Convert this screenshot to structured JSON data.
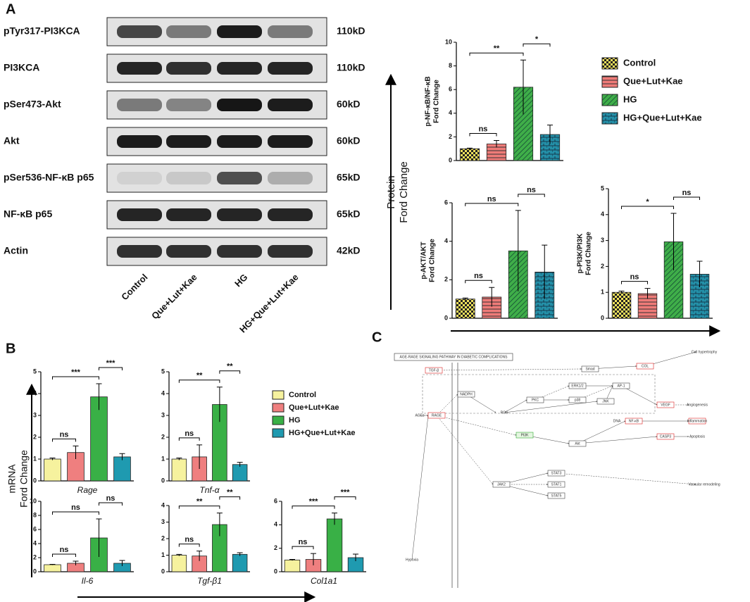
{
  "panels": [
    "A",
    "B",
    "C"
  ],
  "blots": [
    {
      "label": "pTyr317-PI3KCA",
      "size": "110kD"
    },
    {
      "label": "PI3KCA",
      "size": "110kD"
    },
    {
      "label": "pSer473-Akt",
      "size": "60kD"
    },
    {
      "label": "Akt",
      "size": "60kD"
    },
    {
      "label": "pSer536-NF-κB p65",
      "size": "65kD"
    },
    {
      "label": "NF-κB p65",
      "size": "65kD"
    },
    {
      "label": "Actin",
      "size": "42kD"
    }
  ],
  "lanes": [
    "Control",
    "Que+Lut+Kae",
    "HG",
    "HG+Que+Lut+Kae"
  ],
  "protein_axis_label": [
    "Protein",
    "Ford Change"
  ],
  "mrna_axis_label": [
    "mRNA",
    "Ford Change"
  ],
  "legend_a": [
    {
      "name": "Control",
      "color": "#f2e35c",
      "pattern": "checker"
    },
    {
      "name": "Que+Lut+Kae",
      "color": "#ef7b78",
      "pattern": "hstripe"
    },
    {
      "name": "HG",
      "color": "#3fae49",
      "pattern": "diag"
    },
    {
      "name": "HG+Que+Lut+Kae",
      "color": "#2490a8",
      "pattern": "brick"
    }
  ],
  "legend_b": [
    {
      "name": "Control",
      "color": "#f6f29e"
    },
    {
      "name": "Que+Lut+Kae",
      "color": "#ef7f7f"
    },
    {
      "name": "HG",
      "color": "#39b046"
    },
    {
      "name": "HG+Que+Lut+Kae",
      "color": "#1f9ab0"
    }
  ],
  "chart_data": [
    {
      "type": "bar",
      "ylabel": [
        "p-NF-κB/NF-κB",
        "Ford Change"
      ],
      "values": [
        1.0,
        1.4,
        6.2,
        2.2
      ],
      "errors": [
        0.05,
        0.3,
        2.3,
        0.8
      ],
      "colors": [
        "#f2e35c",
        "#ef7b78",
        "#3fae49",
        "#2490a8"
      ],
      "patterns": [
        "checker",
        "hstripe",
        "diag",
        "brick"
      ],
      "ylim": [
        0,
        10
      ],
      "yticks": [
        0,
        2,
        4,
        6,
        8,
        10
      ],
      "comparisons": [
        {
          "from": 0,
          "to": 1,
          "label": "ns"
        },
        {
          "from": 0,
          "to": 2,
          "label": "**"
        },
        {
          "from": 2,
          "to": 3,
          "label": "*"
        }
      ]
    },
    {
      "type": "bar",
      "ylabel": [
        "p-AKT/AKT",
        "Ford Change"
      ],
      "values": [
        1.0,
        1.1,
        3.5,
        2.4
      ],
      "errors": [
        0.05,
        0.5,
        2.1,
        1.4
      ],
      "colors": [
        "#f2e35c",
        "#ef7b78",
        "#3fae49",
        "#2490a8"
      ],
      "patterns": [
        "checker",
        "hstripe",
        "diag",
        "brick"
      ],
      "ylim": [
        0,
        6
      ],
      "yticks": [
        0,
        2,
        4,
        6
      ],
      "comparisons": [
        {
          "from": 0,
          "to": 1,
          "label": "ns"
        },
        {
          "from": 0,
          "to": 2,
          "label": "ns"
        },
        {
          "from": 2,
          "to": 3,
          "label": "ns"
        }
      ]
    },
    {
      "type": "bar",
      "ylabel": [
        "p-PI3K/PI3K",
        "Ford Change"
      ],
      "values": [
        1.0,
        0.95,
        2.95,
        1.7
      ],
      "errors": [
        0.05,
        0.2,
        1.1,
        0.5
      ],
      "colors": [
        "#f2e35c",
        "#ef7b78",
        "#3fae49",
        "#2490a8"
      ],
      "patterns": [
        "checker",
        "hstripe",
        "diag",
        "brick"
      ],
      "ylim": [
        0,
        5
      ],
      "yticks": [
        0,
        1,
        2,
        3,
        4,
        5
      ],
      "comparisons": [
        {
          "from": 0,
          "to": 1,
          "label": "ns"
        },
        {
          "from": 0,
          "to": 2,
          "label": "*"
        },
        {
          "from": 2,
          "to": 3,
          "label": "ns"
        }
      ]
    },
    {
      "type": "bar",
      "xlabel": "Rage",
      "values": [
        1.0,
        1.3,
        3.85,
        1.1
      ],
      "errors": [
        0.05,
        0.3,
        0.6,
        0.15
      ],
      "colors": [
        "#f6f29e",
        "#ef7f7f",
        "#39b046",
        "#1f9ab0"
      ],
      "ylim": [
        0,
        5
      ],
      "yticks": [
        0,
        1,
        2,
        3,
        4,
        5
      ],
      "comparisons": [
        {
          "from": 0,
          "to": 1,
          "label": "ns"
        },
        {
          "from": 0,
          "to": 2,
          "label": "***"
        },
        {
          "from": 2,
          "to": 3,
          "label": "***"
        }
      ]
    },
    {
      "type": "bar",
      "xlabel": "Tnf-α",
      "values": [
        1.0,
        1.1,
        3.5,
        0.75
      ],
      "errors": [
        0.05,
        0.55,
        0.8,
        0.1
      ],
      "colors": [
        "#f6f29e",
        "#ef7f7f",
        "#39b046",
        "#1f9ab0"
      ],
      "ylim": [
        0,
        5
      ],
      "yticks": [
        0,
        1,
        2,
        3,
        4,
        5
      ],
      "comparisons": [
        {
          "from": 0,
          "to": 1,
          "label": "ns"
        },
        {
          "from": 0,
          "to": 2,
          "label": "**"
        },
        {
          "from": 2,
          "to": 3,
          "label": "**"
        }
      ]
    },
    {
      "type": "bar",
      "xlabel": "Il-6",
      "values": [
        1.0,
        1.2,
        4.8,
        1.2
      ],
      "errors": [
        0.05,
        0.3,
        2.7,
        0.4
      ],
      "colors": [
        "#f6f29e",
        "#ef7f7f",
        "#39b046",
        "#1f9ab0"
      ],
      "ylim": [
        0,
        10
      ],
      "yticks": [
        0,
        2,
        4,
        6,
        8,
        10
      ],
      "comparisons": [
        {
          "from": 0,
          "to": 1,
          "label": "ns"
        },
        {
          "from": 0,
          "to": 2,
          "label": "ns"
        },
        {
          "from": 2,
          "to": 3,
          "label": "ns"
        }
      ]
    },
    {
      "type": "bar",
      "xlabel": "Tgf-β1",
      "values": [
        1.0,
        0.95,
        2.85,
        1.05
      ],
      "errors": [
        0.05,
        0.3,
        0.7,
        0.1
      ],
      "colors": [
        "#f6f29e",
        "#ef7f7f",
        "#39b046",
        "#1f9ab0"
      ],
      "ylim": [
        0,
        4
      ],
      "yticks": [
        0,
        1,
        2,
        3,
        4
      ],
      "comparisons": [
        {
          "from": 0,
          "to": 1,
          "label": "ns"
        },
        {
          "from": 0,
          "to": 2,
          "label": "**"
        },
        {
          "from": 2,
          "to": 3,
          "label": "**"
        }
      ]
    },
    {
      "type": "bar",
      "xlabel": "Col1a1",
      "values": [
        1.0,
        1.05,
        4.5,
        1.2
      ],
      "errors": [
        0.05,
        0.5,
        0.5,
        0.3
      ],
      "colors": [
        "#f6f29e",
        "#ef7f7f",
        "#39b046",
        "#1f9ab0"
      ],
      "ylim": [
        0,
        6
      ],
      "yticks": [
        0,
        2,
        4,
        6
      ],
      "comparisons": [
        {
          "from": 0,
          "to": 1,
          "label": "ns"
        },
        {
          "from": 0,
          "to": 2,
          "label": "***"
        },
        {
          "from": 2,
          "to": 3,
          "label": "***"
        }
      ]
    }
  ],
  "diagram": {
    "title": "AGE-RAGE SIGNALING PATHWAY IN DIABETIC COMPLICATIONS",
    "nodes": [
      {
        "label": "AGEs"
      },
      {
        "label": "RAGE"
      },
      {
        "label": "NADPH"
      },
      {
        "label": "ROS"
      },
      {
        "label": "PKC"
      },
      {
        "label": "PI3K"
      },
      {
        "label": "Akt"
      },
      {
        "label": "NF-κB"
      },
      {
        "label": "JAK2"
      },
      {
        "label": "STAT3"
      },
      {
        "label": "STAT1"
      },
      {
        "label": "STAT5"
      },
      {
        "label": "p38"
      },
      {
        "label": "JNK"
      },
      {
        "label": "ERK1/2"
      },
      {
        "label": "AP-1"
      },
      {
        "label": "TGF-β"
      },
      {
        "label": "Smad"
      },
      {
        "label": "COL"
      },
      {
        "label": "VEGF"
      },
      {
        "label": "CASP3"
      },
      {
        "label": "Apoptosis"
      },
      {
        "label": "Inflammation"
      },
      {
        "label": "Angiogenesis"
      },
      {
        "label": "Vascular remodeling"
      },
      {
        "label": "Hypoxia"
      },
      {
        "label": "Cell hypertrophy"
      },
      {
        "label": "DNA"
      }
    ]
  }
}
